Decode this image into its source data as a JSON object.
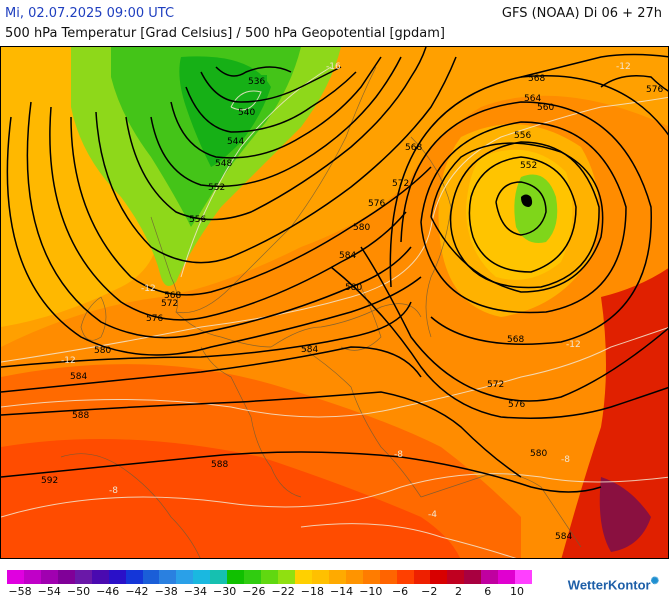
{
  "header": {
    "date": "Mi, 02.07.2025 09:00 UTC",
    "model": "GFS (NOAA) Di 06 + 27h",
    "subtitle": "500 hPa Temperatur [Grad Celsius] / 500 hPa Geopotential [gpdam]"
  },
  "geopotential_labels": [
    "536",
    "540",
    "544",
    "548",
    "552",
    "556",
    "560",
    "564",
    "568",
    "572",
    "576",
    "580",
    "584",
    "588",
    "592"
  ],
  "map_labels": {
    "g536": "536",
    "g540": "540",
    "g544": "544",
    "g548": "548",
    "g552a": "552",
    "g556a": "556",
    "g568a": "568",
    "g572a": "572",
    "g576a": "576",
    "g580a": "580",
    "g584a": "584",
    "g588a": "588",
    "g592": "592",
    "g588b": "588",
    "g584b": "584",
    "g580b": "580",
    "g576b": "576",
    "g572b": "572",
    "g568b": "568",
    "g568c": "568",
    "g564": "564",
    "g560": "560",
    "g556b": "556",
    "g552b": "552",
    "g580c": "580",
    "g584c": "584",
    "g568d": "568",
    "g572c": "572",
    "g576c": "576",
    "g580d": "580",
    "g584d": "584"
  },
  "temperature_labels": {
    "t1": "-12",
    "t2": "-12",
    "t3": "-12",
    "t4": "-8",
    "t5": "-8",
    "t6": "-4",
    "t7": "-12",
    "t8": "-16",
    "t9": "-8"
  },
  "legend": {
    "colors": [
      "#e000e0",
      "#c000c8",
      "#a000b0",
      "#800098",
      "#6a18a8",
      "#4a0ab0",
      "#2a10c8",
      "#1436d8",
      "#1a5ed8",
      "#2a80e0",
      "#2aa0e8",
      "#1ab8e0",
      "#16c0b0",
      "#10c000",
      "#30cc10",
      "#60d810",
      "#90e010",
      "#ffd000",
      "#ffc000",
      "#ffaa00",
      "#ff9400",
      "#ff7c00",
      "#ff6400",
      "#ff4000",
      "#ee2000",
      "#d80000",
      "#c00020",
      "#a80040",
      "#c000a0",
      "#e000d0",
      "#ff40ff"
    ],
    "ticks": [
      "−58",
      "−54",
      "−50",
      "−46",
      "−42",
      "−38",
      "−34",
      "−30",
      "−26",
      "−22",
      "−18",
      "−14",
      "−10",
      "−6",
      "−2",
      "2",
      "6",
      "10"
    ]
  },
  "brand": "WetterKontor"
}
